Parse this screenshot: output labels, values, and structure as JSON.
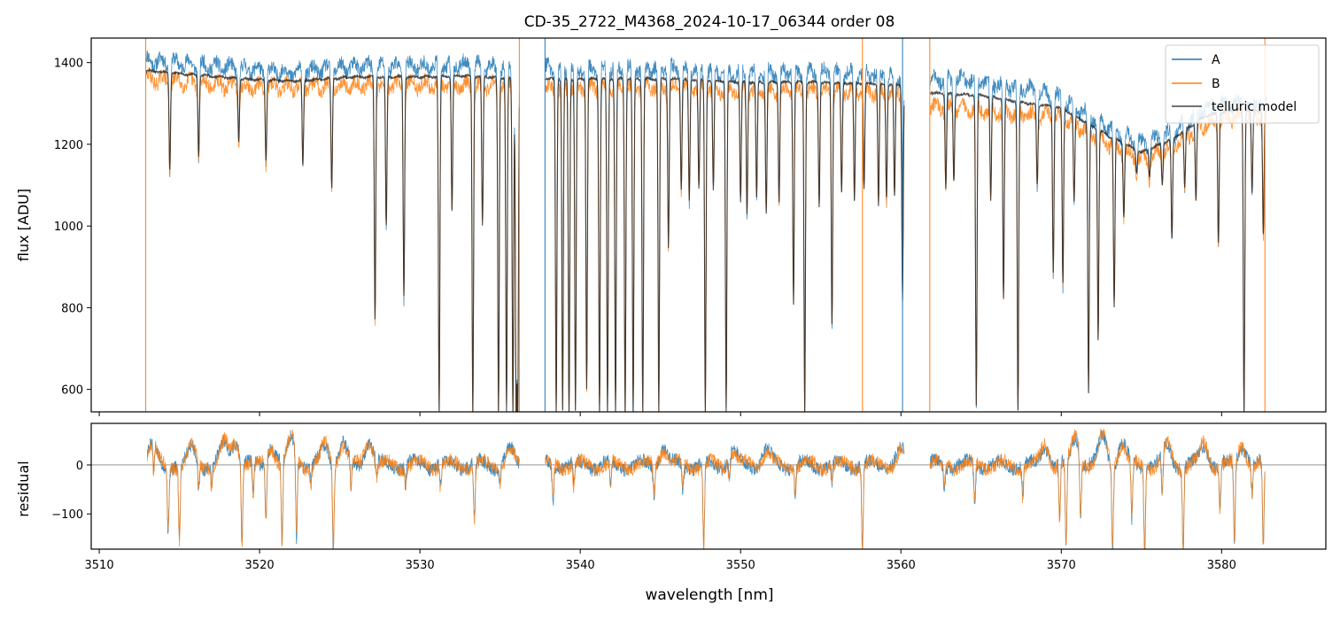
{
  "chart_data": [
    {
      "type": "line",
      "panel": "top",
      "title": "CD-35_2722_M4368_2024-10-17_06344  order 08",
      "xlabel": "",
      "ylabel": "flux [ADU]",
      "xlim": [
        3509.5,
        3586.5
      ],
      "ylim": [
        545,
        1460
      ],
      "yticks": [
        600,
        800,
        1000,
        1200,
        1400
      ],
      "xticks": [
        3510,
        3520,
        3530,
        3540,
        3550,
        3560,
        3570,
        3580
      ],
      "grid": false,
      "legend": {
        "placement": "top-right",
        "entries": [
          "A",
          "B",
          "telluric model"
        ]
      },
      "gaps": [
        [
          3536.2,
          3537.8
        ],
        [
          3560.2,
          3561.8
        ]
      ],
      "series": [
        {
          "name": "A",
          "color": "#1f77b4",
          "continuum": [
            [
              3513.0,
              1405
            ],
            [
              3516.0,
              1395
            ],
            [
              3519.0,
              1385
            ],
            [
              3522.0,
              1375
            ],
            [
              3526.0,
              1390
            ],
            [
              3530.0,
              1390
            ],
            [
              3533.0,
              1395
            ],
            [
              3536.0,
              1385
            ],
            [
              3538.0,
              1385
            ],
            [
              3542.0,
              1385
            ],
            [
              3546.0,
              1385
            ],
            [
              3550.0,
              1375
            ],
            [
              3554.0,
              1375
            ],
            [
              3557.0,
              1375
            ],
            [
              3560.0,
              1365
            ],
            [
              3562.0,
              1360
            ],
            [
              3565.0,
              1355
            ],
            [
              3568.0,
              1335
            ],
            [
              3570.0,
              1310
            ],
            [
              3573.0,
              1240
            ],
            [
              3575.0,
              1200
            ],
            [
              3577.0,
              1230
            ],
            [
              3579.0,
              1290
            ],
            [
              3581.0,
              1300
            ],
            [
              3582.8,
              1300
            ]
          ]
        },
        {
          "name": "B",
          "color": "#ff7f0e",
          "continuum": [
            [
              3513.0,
              1360
            ],
            [
              3516.0,
              1350
            ],
            [
              3519.0,
              1340
            ],
            [
              3522.0,
              1340
            ],
            [
              3526.0,
              1345
            ],
            [
              3530.0,
              1345
            ],
            [
              3533.0,
              1345
            ],
            [
              3536.0,
              1345
            ],
            [
              3538.0,
              1335
            ],
            [
              3542.0,
              1340
            ],
            [
              3546.0,
              1340
            ],
            [
              3550.0,
              1330
            ],
            [
              3554.0,
              1330
            ],
            [
              3557.0,
              1330
            ],
            [
              3560.0,
              1325
            ],
            [
              3562.0,
              1290
            ],
            [
              3565.0,
              1285
            ],
            [
              3568.0,
              1270
            ],
            [
              3570.0,
              1270
            ],
            [
              3573.0,
              1200
            ],
            [
              3575.0,
              1160
            ],
            [
              3577.0,
              1200
            ],
            [
              3579.0,
              1250
            ],
            [
              3581.0,
              1270
            ],
            [
              3582.8,
              1260
            ]
          ]
        },
        {
          "name": "telluric model",
          "color": "#444444",
          "continuum": [
            [
              3513.0,
              1380
            ],
            [
              3516.0,
              1370
            ],
            [
              3519.0,
              1360
            ],
            [
              3522.0,
              1355
            ],
            [
              3526.0,
              1365
            ],
            [
              3530.0,
              1365
            ],
            [
              3533.0,
              1368
            ],
            [
              3536.0,
              1360
            ],
            [
              3538.0,
              1360
            ],
            [
              3542.0,
              1360
            ],
            [
              3546.0,
              1360
            ],
            [
              3550.0,
              1352
            ],
            [
              3554.0,
              1352
            ],
            [
              3557.0,
              1350
            ],
            [
              3560.0,
              1345
            ],
            [
              3562.0,
              1325
            ],
            [
              3565.0,
              1320
            ],
            [
              3568.0,
              1300
            ],
            [
              3570.0,
              1290
            ],
            [
              3573.0,
              1220
            ],
            [
              3575.0,
              1180
            ],
            [
              3577.0,
              1215
            ],
            [
              3579.0,
              1270
            ],
            [
              3581.0,
              1285
            ],
            [
              3582.8,
              1280
            ]
          ]
        }
      ],
      "absorption_lines": [
        [
          3514.4,
          1140
        ],
        [
          3516.2,
          1170
        ],
        [
          3518.7,
          1210
        ],
        [
          3520.4,
          1160
        ],
        [
          3522.7,
          1150
        ],
        [
          3524.5,
          1090
        ],
        [
          3527.2,
          770
        ],
        [
          3527.9,
          1000
        ],
        [
          3529.0,
          830
        ],
        [
          3531.2,
          545
        ],
        [
          3532.0,
          1040
        ],
        [
          3533.3,
          545
        ],
        [
          3533.9,
          1000
        ],
        [
          3534.9,
          545
        ],
        [
          3535.4,
          545
        ],
        [
          3535.8,
          545
        ],
        [
          3536.0,
          545
        ],
        [
          3536.1,
          545
        ],
        [
          3538.5,
          545
        ],
        [
          3538.9,
          545
        ],
        [
          3539.3,
          545
        ],
        [
          3539.7,
          545
        ],
        [
          3540.4,
          600
        ],
        [
          3541.2,
          545
        ],
        [
          3541.7,
          545
        ],
        [
          3542.2,
          545
        ],
        [
          3542.8,
          545
        ],
        [
          3543.3,
          545
        ],
        [
          3543.9,
          545
        ],
        [
          3544.9,
          545
        ],
        [
          3545.5,
          950
        ],
        [
          3546.3,
          1090
        ],
        [
          3546.8,
          1060
        ],
        [
          3547.4,
          1090
        ],
        [
          3547.8,
          545
        ],
        [
          3548.3,
          1090
        ],
        [
          3549.1,
          545
        ],
        [
          3550.0,
          1060
        ],
        [
          3550.4,
          1030
        ],
        [
          3551.0,
          1070
        ],
        [
          3551.6,
          1030
        ],
        [
          3552.4,
          1060
        ],
        [
          3553.3,
          810
        ],
        [
          3554.0,
          545
        ],
        [
          3554.9,
          1050
        ],
        [
          3555.7,
          760
        ],
        [
          3556.3,
          1080
        ],
        [
          3557.1,
          1060
        ],
        [
          3557.7,
          1090
        ],
        [
          3558.6,
          1050
        ],
        [
          3559.1,
          1070
        ],
        [
          3559.6,
          1070
        ],
        [
          3560.1,
          820
        ],
        [
          3562.8,
          1090
        ],
        [
          3563.3,
          1110
        ],
        [
          3564.7,
          560
        ],
        [
          3565.6,
          1060
        ],
        [
          3566.4,
          820
        ],
        [
          3567.3,
          545
        ],
        [
          3568.5,
          1100
        ],
        [
          3569.5,
          890
        ],
        [
          3570.1,
          860
        ],
        [
          3570.8,
          1060
        ],
        [
          3571.7,
          590
        ],
        [
          3572.3,
          720
        ],
        [
          3573.3,
          800
        ],
        [
          3573.9,
          1020
        ],
        [
          3574.7,
          1130
        ],
        [
          3575.5,
          1120
        ],
        [
          3576.3,
          1100
        ],
        [
          3576.9,
          970
        ],
        [
          3577.7,
          1090
        ],
        [
          3578.4,
          1060
        ],
        [
          3579.8,
          960
        ],
        [
          3581.4,
          545
        ],
        [
          3581.9,
          1080
        ],
        [
          3582.6,
          980
        ]
      ],
      "noise_amplitude": 18
    },
    {
      "type": "line",
      "panel": "bottom",
      "title": "",
      "xlabel": "wavelength [nm]",
      "ylabel": "residual",
      "xlim": [
        3509.5,
        3586.5
      ],
      "ylim": [
        -172,
        85
      ],
      "yticks": [
        -100,
        0
      ],
      "xticks": [
        3510,
        3520,
        3530,
        3540,
        3550,
        3560,
        3570,
        3580
      ],
      "xtick_labels": [
        "3510",
        "3520",
        "3530",
        "3540",
        "3550",
        "3560",
        "3570",
        "3580"
      ],
      "zero_line": true,
      "grid": false,
      "series": [
        {
          "name": "A",
          "color": "#1f77b4"
        },
        {
          "name": "B",
          "color": "#ff7f0e"
        }
      ],
      "residual_features": [
        [
          3513.4,
          -60
        ],
        [
          3514.3,
          -130
        ],
        [
          3515.0,
          -150
        ],
        [
          3516.2,
          -50
        ],
        [
          3517.0,
          -40
        ],
        [
          3518.9,
          -172
        ],
        [
          3519.6,
          -70
        ],
        [
          3520.4,
          -130
        ],
        [
          3521.4,
          -172
        ],
        [
          3522.3,
          -172
        ],
        [
          3523.2,
          -40
        ],
        [
          3524.6,
          -172
        ],
        [
          3525.7,
          -60
        ],
        [
          3527.3,
          -30
        ],
        [
          3529.1,
          -40
        ],
        [
          3531.3,
          -50
        ],
        [
          3533.4,
          -120
        ],
        [
          3535.0,
          -30
        ],
        [
          3538.3,
          -80
        ],
        [
          3539.6,
          -50
        ],
        [
          3541.9,
          -50
        ],
        [
          3544.6,
          -60
        ],
        [
          3546.4,
          -50
        ],
        [
          3547.7,
          -172
        ],
        [
          3549.3,
          -40
        ],
        [
          3553.4,
          -60
        ],
        [
          3555.7,
          -40
        ],
        [
          3557.6,
          -172
        ],
        [
          3562.7,
          -50
        ],
        [
          3564.6,
          -80
        ],
        [
          3567.6,
          -60
        ],
        [
          3569.9,
          -110
        ],
        [
          3570.3,
          -172
        ],
        [
          3571.2,
          -130
        ],
        [
          3573.2,
          -172
        ],
        [
          3574.4,
          -120
        ],
        [
          3575.2,
          -172
        ],
        [
          3576.3,
          -90
        ],
        [
          3577.6,
          -170
        ],
        [
          3579.9,
          -90
        ],
        [
          3580.8,
          -172
        ],
        [
          3581.9,
          -60
        ],
        [
          3582.6,
          -172
        ]
      ],
      "residual_bumps": [
        [
          3513.3,
          60
        ],
        [
          3515.8,
          50
        ],
        [
          3517.8,
          60
        ],
        [
          3518.5,
          70
        ],
        [
          3520.7,
          60
        ],
        [
          3522.0,
          80
        ],
        [
          3524.1,
          60
        ],
        [
          3525.2,
          60
        ],
        [
          3526.8,
          75
        ],
        [
          3535.6,
          40
        ],
        [
          3545.2,
          50
        ],
        [
          3549.5,
          40
        ],
        [
          3551.6,
          40
        ],
        [
          3560.0,
          40
        ],
        [
          3569.0,
          60
        ],
        [
          3570.9,
          85
        ],
        [
          3572.6,
          85
        ],
        [
          3573.8,
          60
        ],
        [
          3576.6,
          55
        ],
        [
          3578.9,
          60
        ],
        [
          3581.3,
          60
        ]
      ],
      "noise_amplitude": 14
    }
  ]
}
